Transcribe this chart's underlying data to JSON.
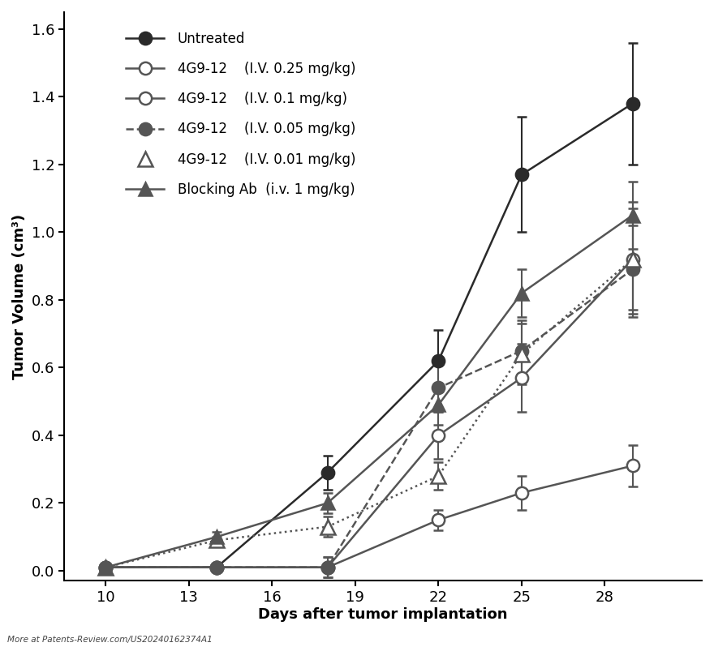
{
  "x_days": [
    10,
    14,
    18,
    22,
    25,
    29
  ],
  "series": [
    {
      "label": "Untreated",
      "style": "solid",
      "marker": "circle_filled",
      "color": "#2a2a2a",
      "filled": true,
      "y": [
        0.01,
        0.01,
        0.29,
        0.62,
        1.17,
        1.38
      ],
      "yerr": [
        0.01,
        0.01,
        0.05,
        0.09,
        0.17,
        0.18
      ]
    },
    {
      "label": "4G9-12    (I.V. 0.25 mg/kg)",
      "style": "solid",
      "marker": "circle_open",
      "color": "#555555",
      "filled": false,
      "y": [
        0.01,
        0.01,
        0.01,
        0.15,
        0.23,
        0.31
      ],
      "yerr": [
        0.005,
        0.005,
        0.01,
        0.03,
        0.05,
        0.06
      ]
    },
    {
      "label": "4G9-12    (I.V. 0.1 mg/kg)",
      "style": "solid",
      "marker": "circle_open",
      "color": "#555555",
      "filled": false,
      "y": [
        0.01,
        0.01,
        0.01,
        0.4,
        0.57,
        0.92
      ],
      "yerr": [
        0.005,
        0.005,
        0.03,
        0.07,
        0.1,
        0.17
      ]
    },
    {
      "label": "4G9-12    (I.V. 0.05 mg/kg)",
      "style": "dashed",
      "marker": "circle_filled",
      "color": "#555555",
      "filled": true,
      "y": [
        0.01,
        0.01,
        0.01,
        0.54,
        0.65,
        0.89
      ],
      "yerr": [
        0.005,
        0.005,
        0.03,
        0.07,
        0.09,
        0.13
      ]
    },
    {
      "label": "4G9-12    (I.V. 0.01 mg/kg)",
      "style": "dotted",
      "marker": "triangle_open",
      "color": "#555555",
      "filled": false,
      "y": [
        0.01,
        0.09,
        0.13,
        0.28,
        0.64,
        0.92
      ],
      "yerr": [
        0.005,
        0.01,
        0.03,
        0.04,
        0.09,
        0.15
      ]
    },
    {
      "label": "Blocking Ab  (i.v. 1 mg/kg)",
      "style": "solid",
      "marker": "triangle_filled",
      "color": "#555555",
      "filled": true,
      "y": [
        0.01,
        0.1,
        0.2,
        0.49,
        0.82,
        1.05
      ],
      "yerr": [
        0.005,
        0.015,
        0.03,
        0.06,
        0.07,
        0.1
      ]
    }
  ],
  "xlabel": "Days after tumor implantation",
  "ylabel": "Tumor Volume (cm³)",
  "xlim": [
    8.5,
    31.5
  ],
  "ylim": [
    -0.03,
    1.65
  ],
  "xticks": [
    10,
    13,
    16,
    19,
    22,
    25,
    28
  ],
  "yticks": [
    0.0,
    0.2,
    0.4,
    0.6,
    0.8,
    1.0,
    1.2,
    1.4,
    1.6
  ],
  "background_color": "#ffffff",
  "footnote": "More at Patents-Review.com/US20240162374A1"
}
